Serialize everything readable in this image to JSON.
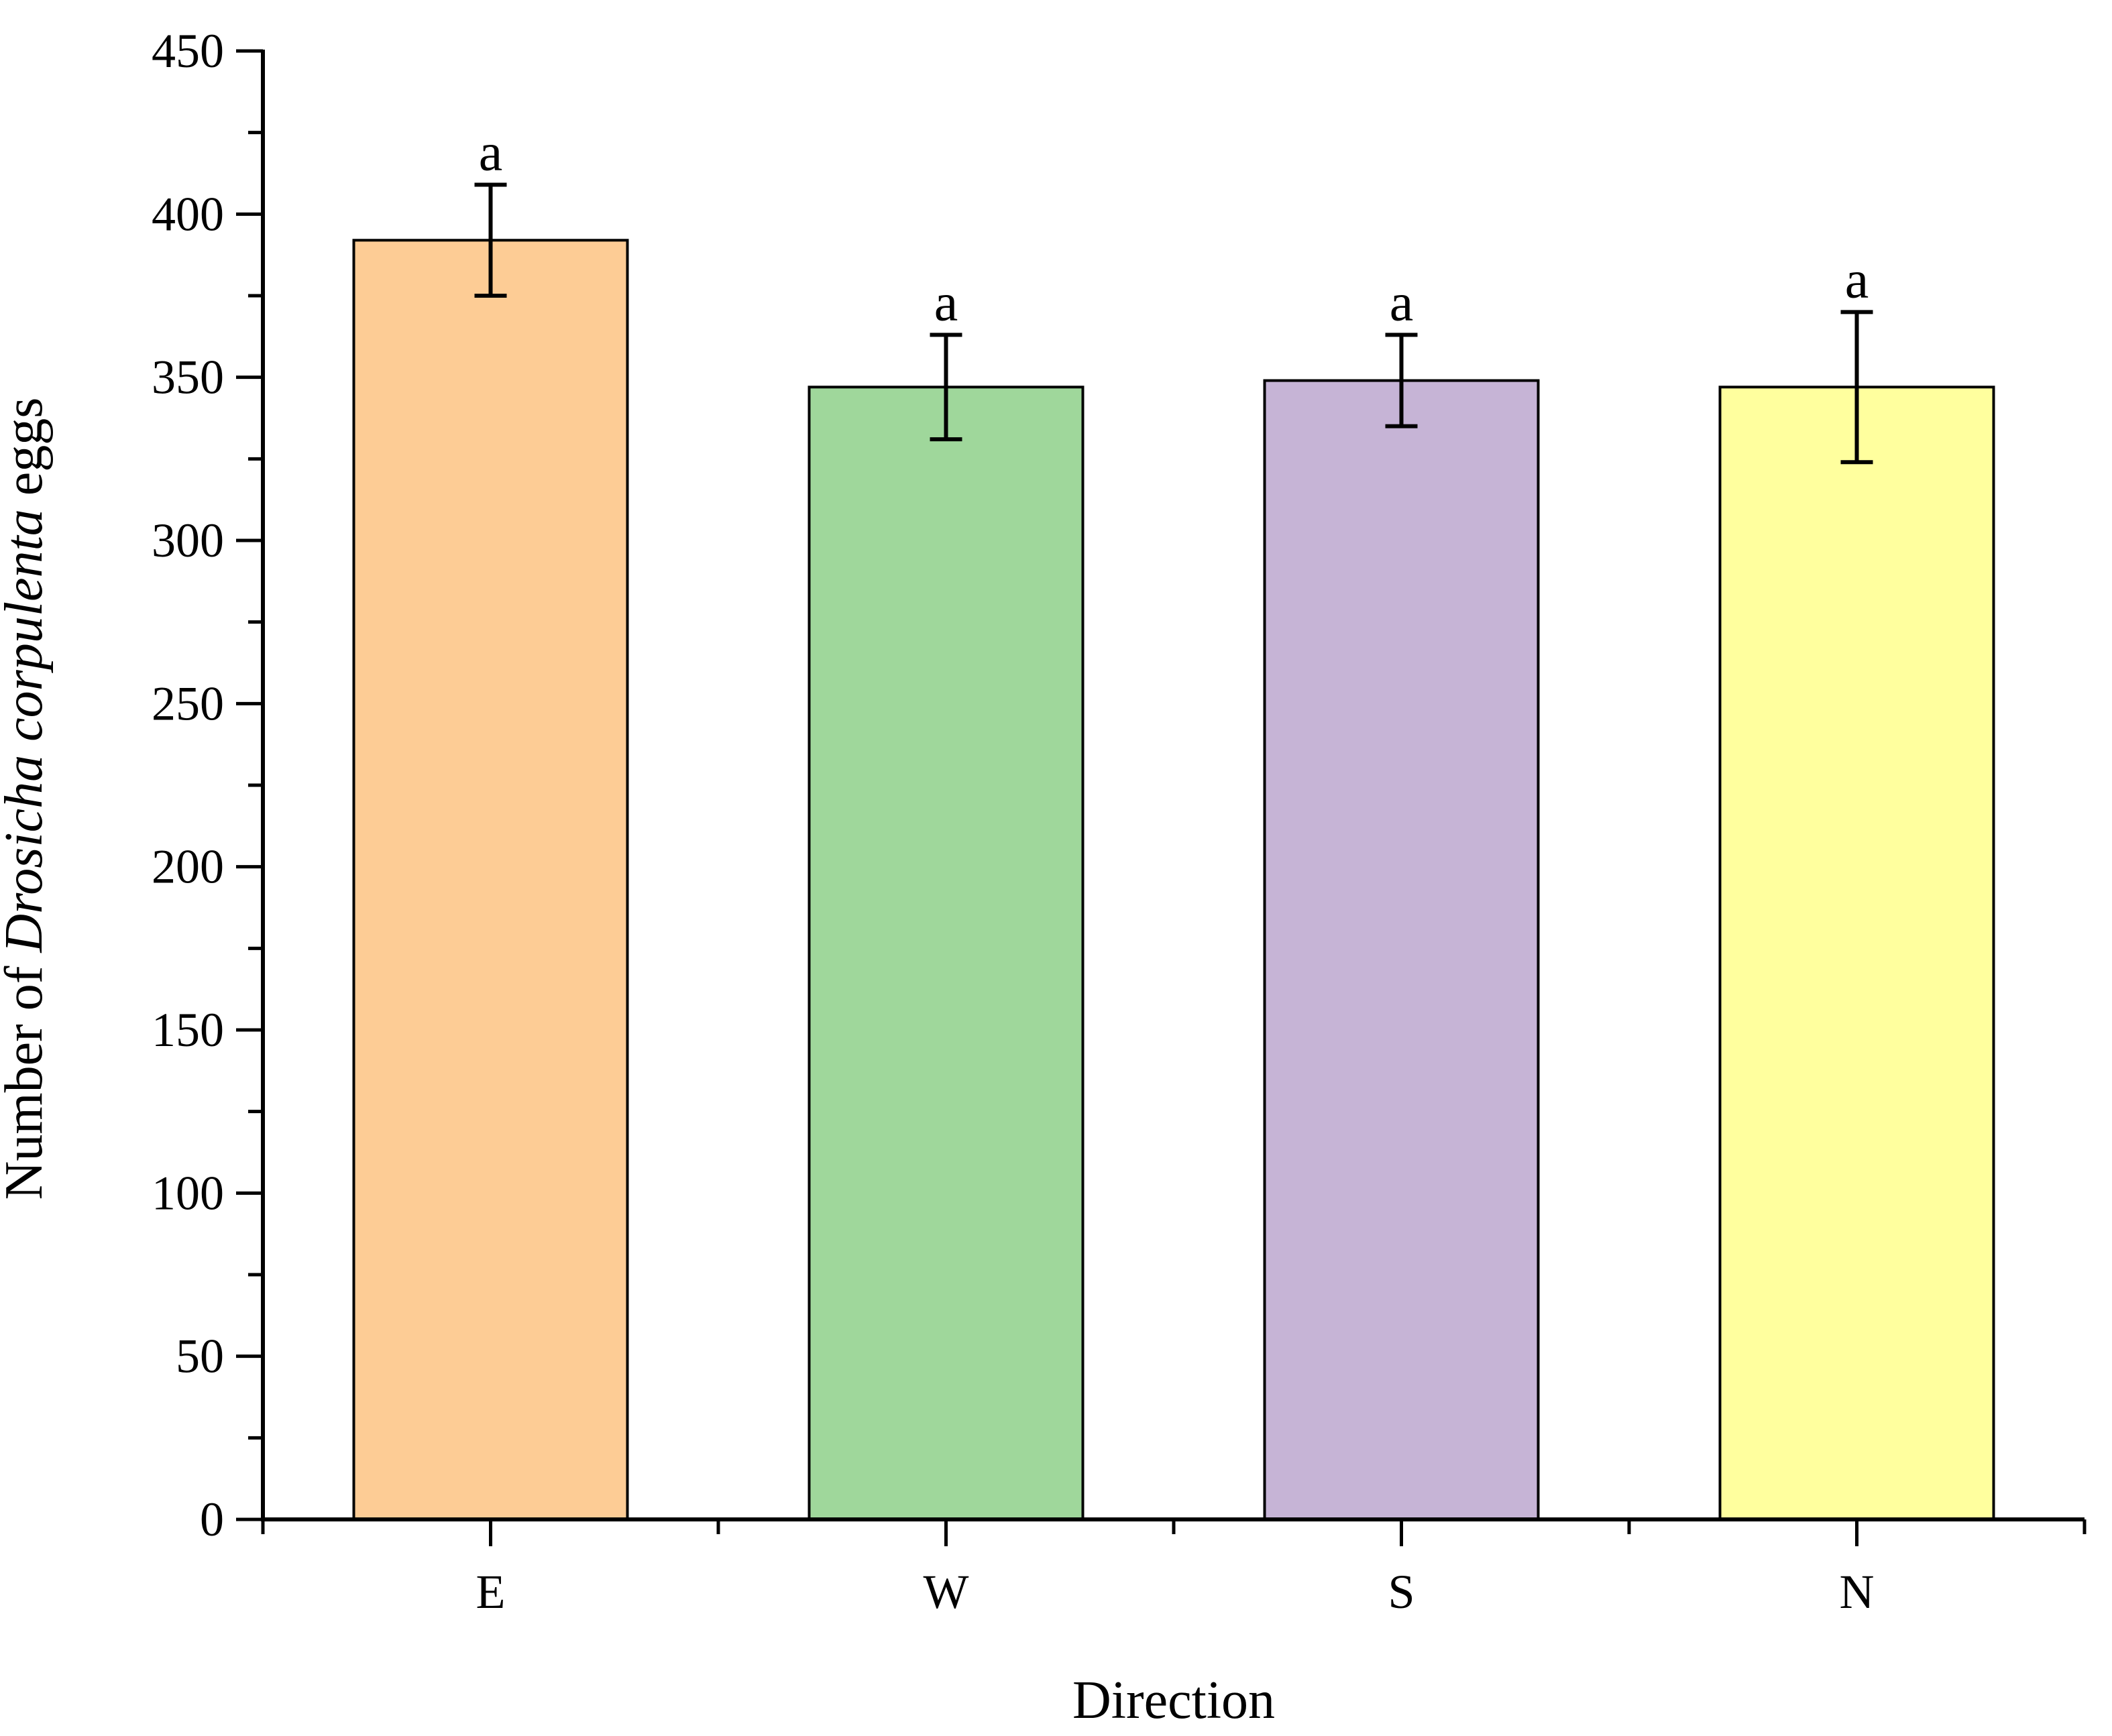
{
  "chart_data": {
    "type": "bar",
    "categories": [
      "E",
      "W",
      "S",
      "N"
    ],
    "values": [
      392,
      347,
      349,
      347
    ],
    "errors": [
      17,
      16,
      14,
      23
    ],
    "significance": [
      "a",
      "a",
      "a",
      "a"
    ],
    "colors": [
      "#FDCC95",
      "#9FD79B",
      "#C6B4D6",
      "#FFFF9E"
    ],
    "xlabel": "Direction",
    "ylabel_parts": [
      {
        "text": "Number of ",
        "italic": false
      },
      {
        "text": "Drosicha corpulenta",
        "italic": true
      },
      {
        "text": " eggs",
        "italic": false
      }
    ],
    "ylim": [
      0,
      450
    ],
    "yticks": [
      0,
      50,
      100,
      150,
      200,
      250,
      300,
      350,
      400,
      450
    ],
    "ytick_labels": [
      "0",
      "50",
      "100",
      "150",
      "200",
      "250",
      "300",
      "350",
      "400",
      "450"
    ],
    "grid": false,
    "legend": "none"
  }
}
